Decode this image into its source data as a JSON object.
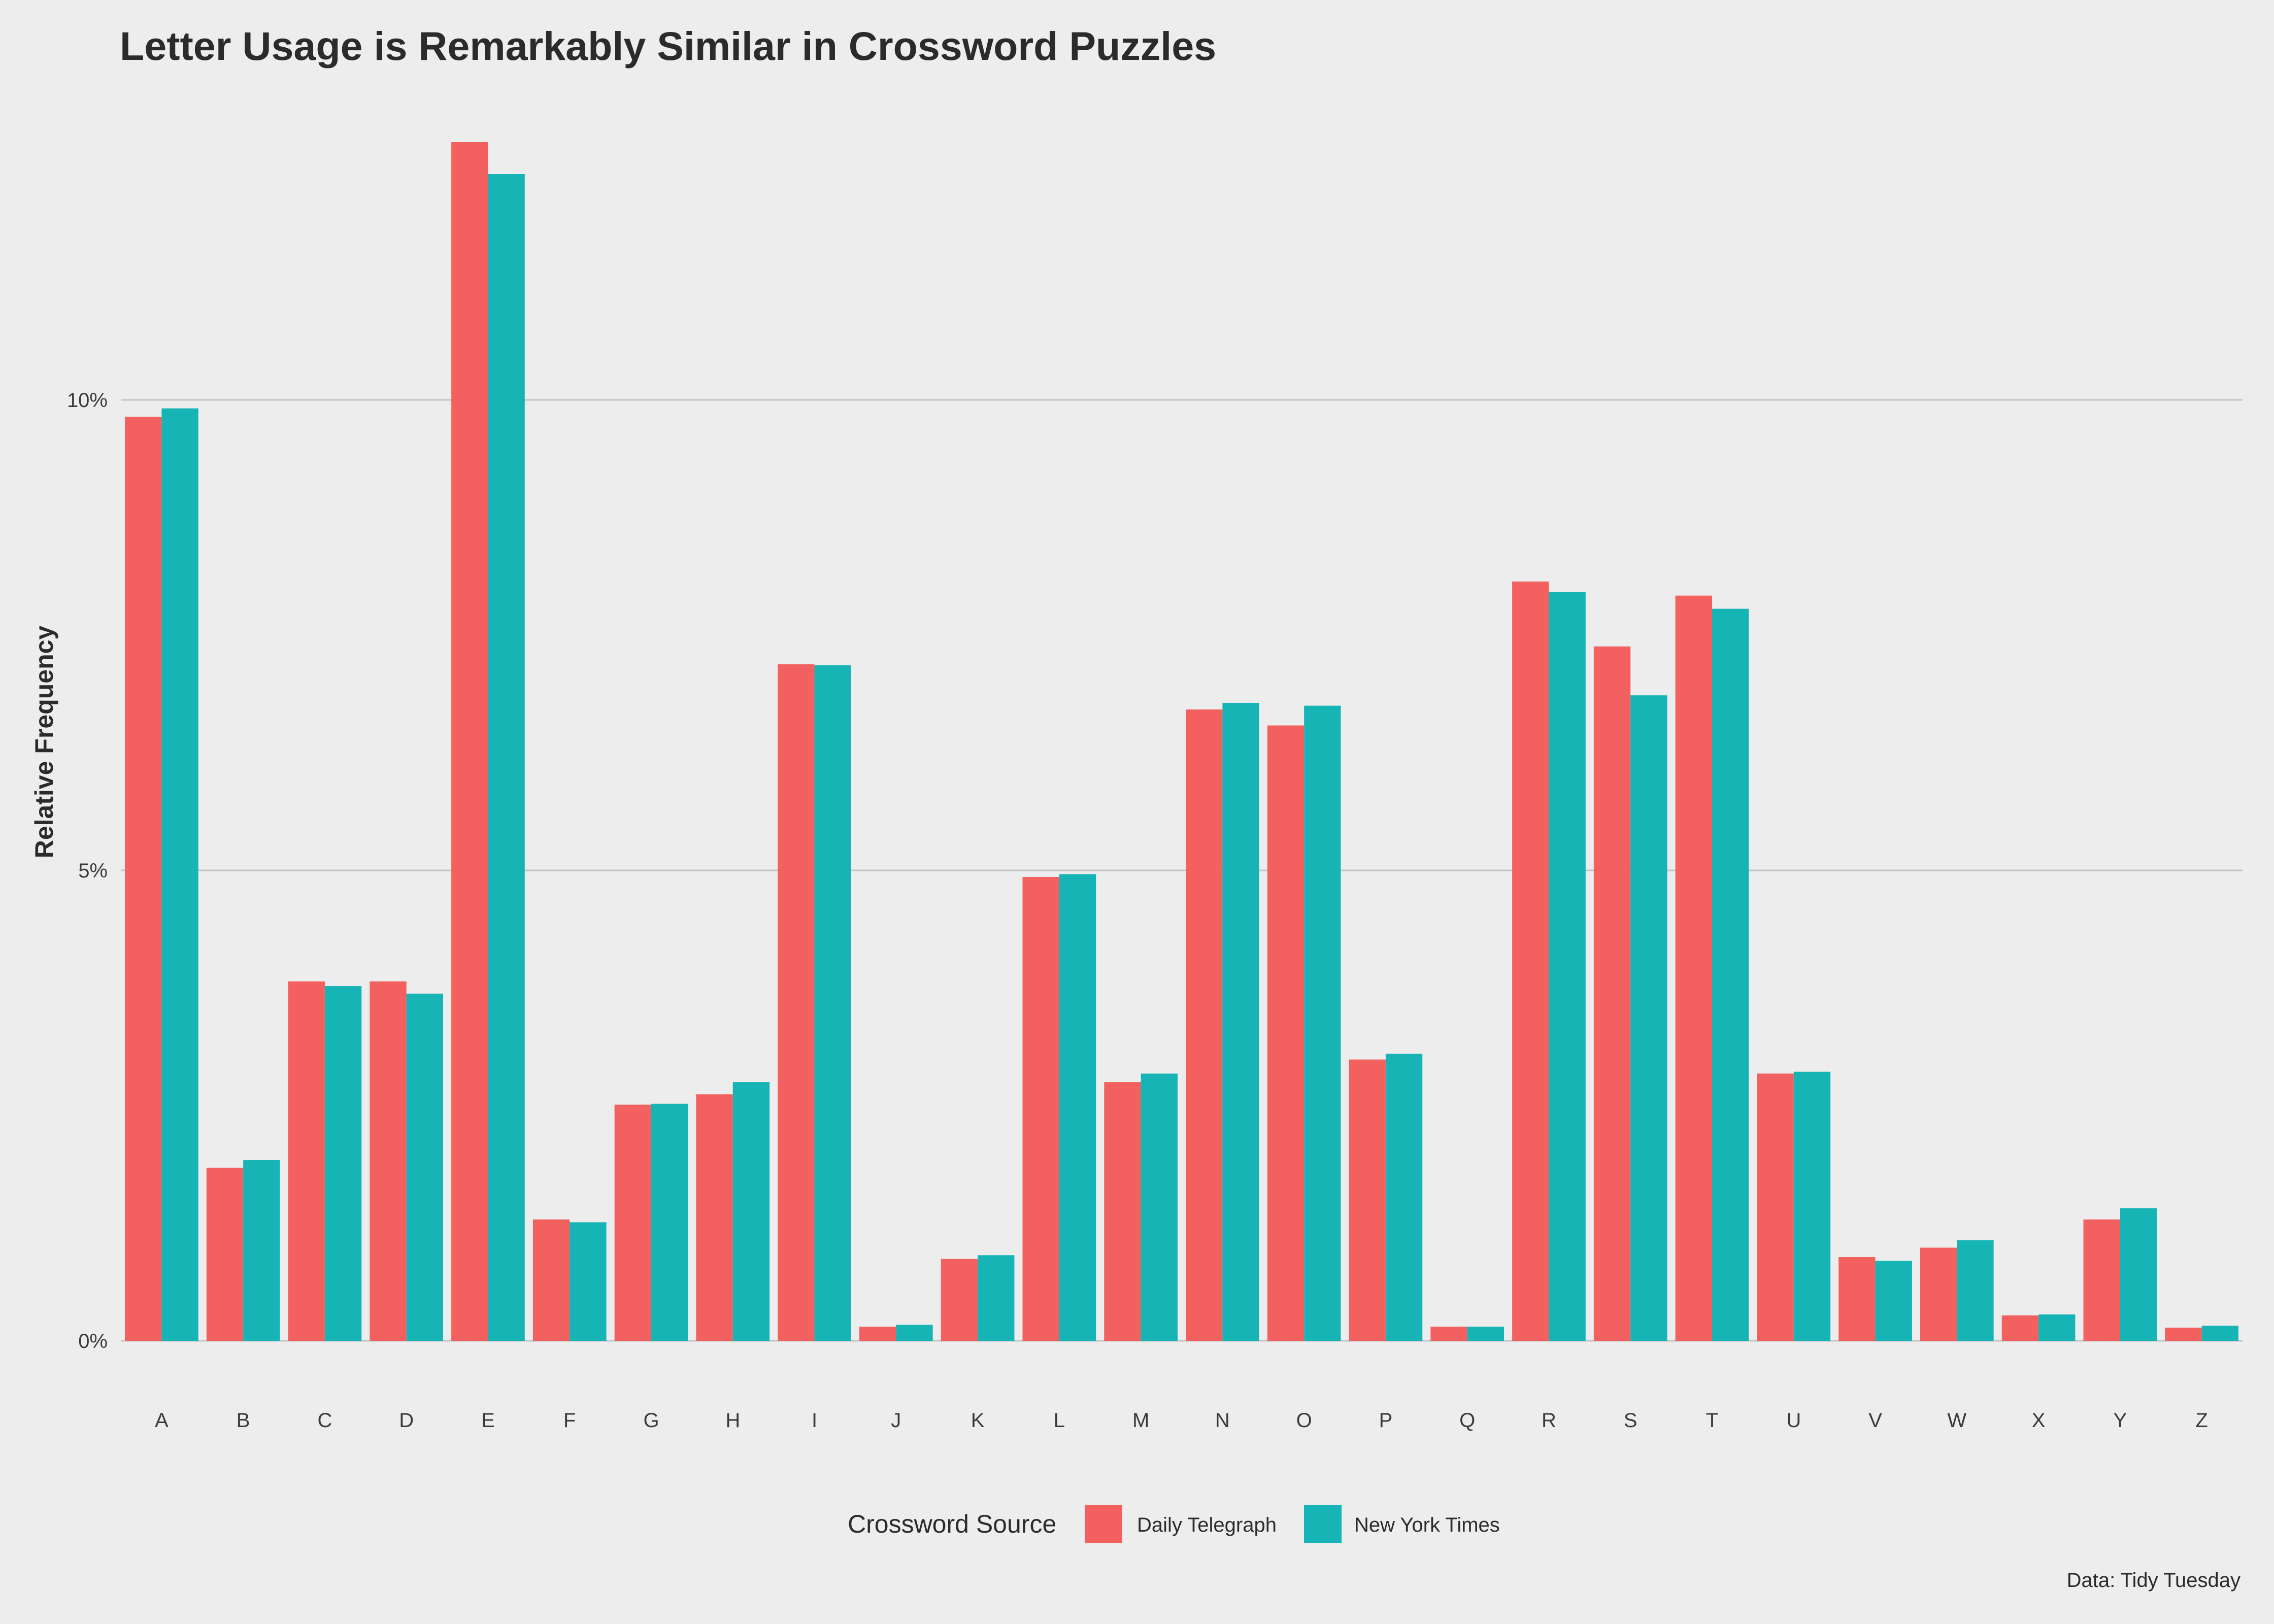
{
  "chart_data": {
    "type": "bar",
    "title": "Letter Usage is Remarkably Similar in Crossword Puzzles",
    "xlabel": "",
    "ylabel": "Relative Frequency",
    "ylim": [
      0,
      13.0
    ],
    "yticks": [
      0,
      5,
      10
    ],
    "ytick_labels": [
      "0%",
      "5%",
      "10%"
    ],
    "grid": "horizontal-major",
    "legend_title": "Crossword Source",
    "legend_position": "bottom",
    "caption": "Data: Tidy Tuesday",
    "categories": [
      "A",
      "B",
      "C",
      "D",
      "E",
      "F",
      "G",
      "H",
      "I",
      "J",
      "K",
      "L",
      "M",
      "N",
      "O",
      "P",
      "Q",
      "R",
      "S",
      "T",
      "U",
      "V",
      "W",
      "X",
      "Y",
      "Z"
    ],
    "series": [
      {
        "name": "Daily Telegraph",
        "color": "#F8766D",
        "values": [
          9.82,
          1.84,
          3.82,
          3.82,
          12.74,
          1.29,
          2.51,
          2.62,
          7.19,
          0.15,
          0.87,
          4.93,
          2.75,
          6.71,
          6.54,
          2.99,
          0.15,
          8.07,
          7.38,
          7.92,
          2.84,
          0.89,
          0.99,
          0.27,
          1.29,
          0.14
        ],
        "display_color": "#F2615F"
      },
      {
        "name": "New York Times",
        "color": "#00BFC4",
        "values": [
          9.91,
          1.92,
          3.77,
          3.69,
          12.4,
          1.26,
          2.52,
          2.75,
          7.18,
          0.17,
          0.91,
          4.96,
          2.84,
          6.78,
          6.75,
          3.05,
          0.15,
          7.96,
          6.86,
          7.78,
          2.86,
          0.85,
          1.07,
          0.28,
          1.41,
          0.16
        ],
        "display_color": "#17B4B6"
      }
    ]
  }
}
